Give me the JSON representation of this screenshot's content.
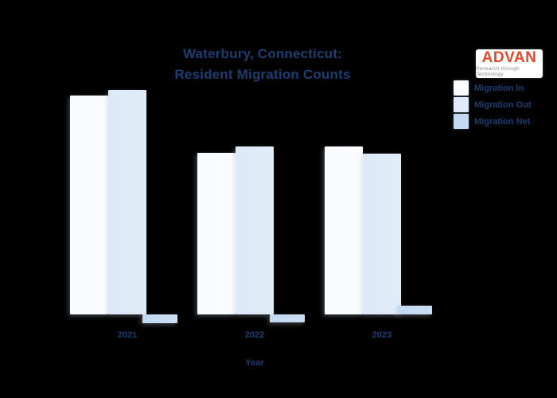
{
  "title": {
    "line1": "Waterbury, Connecticut:",
    "line2": "Resident Migration Counts"
  },
  "logo": {
    "name": "ADVAN",
    "tagline": "Research through Technology",
    "brand_color": "#e2492a"
  },
  "legend": {
    "items": [
      {
        "label": "Migration In",
        "color": "#fafcff"
      },
      {
        "label": "Migration Out",
        "color": "#dfeafa"
      },
      {
        "label": "Migration Net",
        "color": "#c3d9f1"
      }
    ]
  },
  "x_axis": {
    "title": "Year",
    "tick_labels": [
      "2021",
      "2022",
      "2023"
    ]
  },
  "colors": {
    "background": "#000000",
    "text": "#1d3e70",
    "bar_in": "#f9fbfe",
    "bar_out": "#dde9f8",
    "bar_net": "#c3d9f1"
  },
  "chart_data": {
    "type": "bar",
    "title": "Waterbury, Connecticut: Resident Migration Counts",
    "xlabel": "Year",
    "ylabel": "",
    "categories": [
      "2021",
      "2022",
      "2023"
    ],
    "series": [
      {
        "name": "Migration In",
        "color": "#f9fbfe",
        "values": [
          97.5,
          72.0,
          74.8
        ]
      },
      {
        "name": "Migration Out",
        "color": "#dde9f8",
        "values": [
          100.0,
          74.8,
          71.6
        ]
      },
      {
        "name": "Migration Net",
        "color": "#c3d9f1",
        "values": [
          -4.0,
          -3.5,
          3.9
        ]
      }
    ],
    "value_scale": "relative, percent of tallest bar (no y-axis or gridlines shown)",
    "ylim": [
      -5,
      100
    ],
    "grid": false,
    "y_axis_visible": false,
    "legend_position": "top-right"
  }
}
